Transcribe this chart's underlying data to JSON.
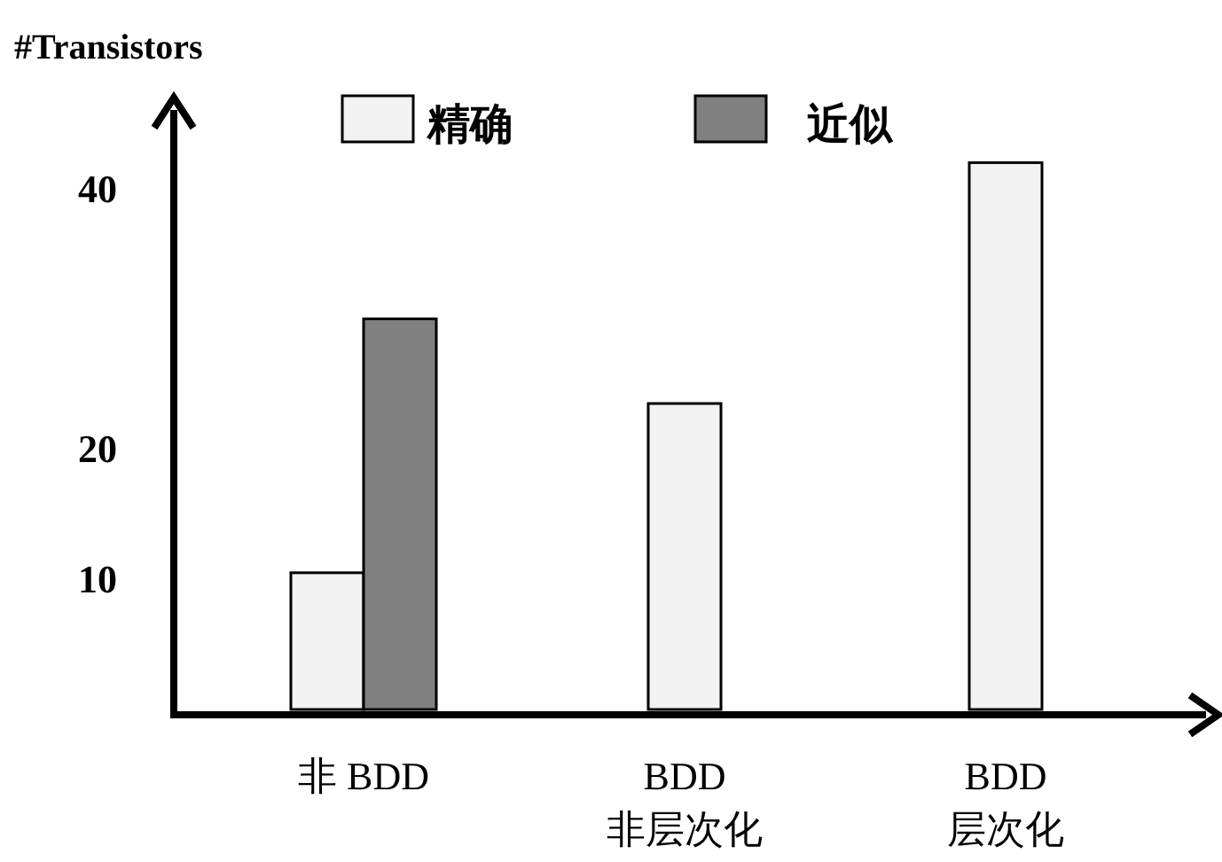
{
  "chart_data": {
    "type": "bar",
    "ylabel": "#Transistors",
    "categories": [
      "非 BDD",
      "BDD\n非层次化",
      "BDD\n层次化"
    ],
    "series": [
      {
        "name": "精确",
        "color": "#f2f2f2",
        "values": [
          10.5,
          23.5,
          42
        ]
      },
      {
        "name": "近似",
        "color": "#808080",
        "values": [
          30,
          null,
          null
        ]
      }
    ],
    "ylim": [
      0,
      47
    ],
    "yticks": [
      10,
      20,
      40
    ],
    "legend": "top"
  }
}
